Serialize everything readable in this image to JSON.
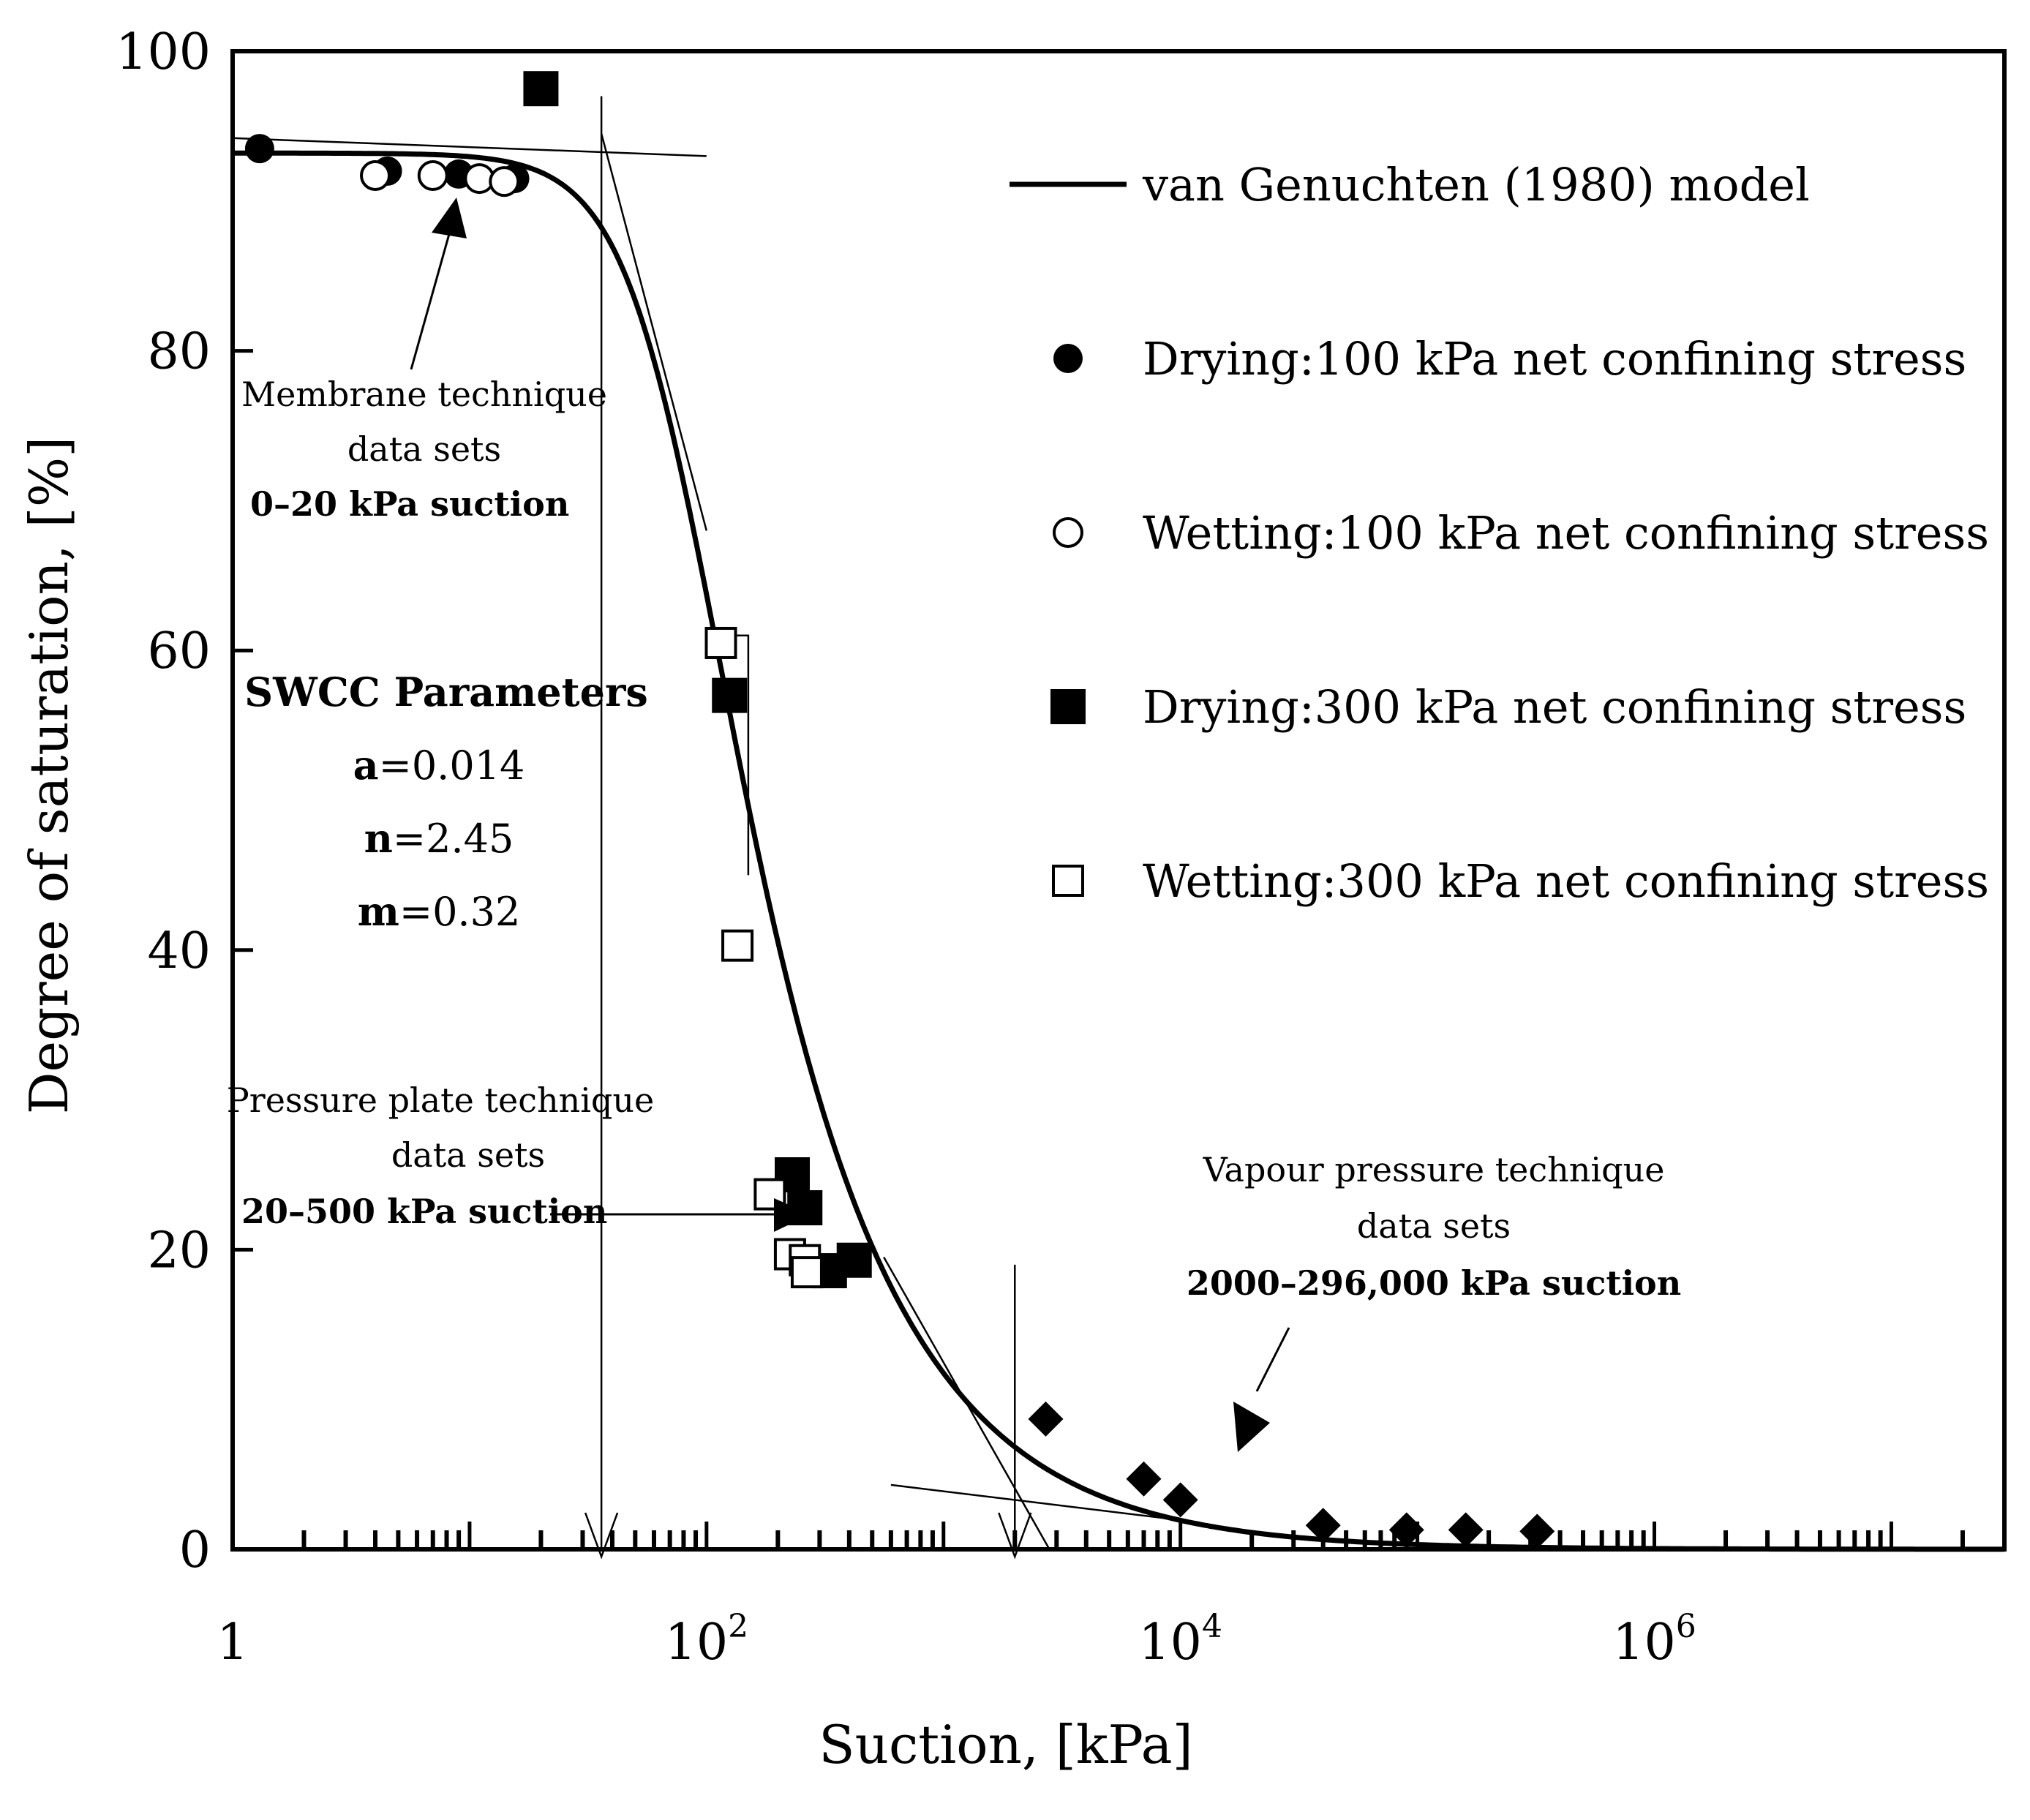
{
  "chart_data": {
    "type": "scatter",
    "xlabel": "Suction, [kPa]",
    "ylabel": "Degree of saturation, [%]",
    "x_scale": "log",
    "xlim": [
      1,
      30000000
    ],
    "ylim": [
      0,
      100
    ],
    "x_ticks": [
      {
        "value": 1,
        "label": "1",
        "exp": ""
      },
      {
        "value": 100,
        "label": "10",
        "exp": "2"
      },
      {
        "value": 10000,
        "label": "10",
        "exp": "4"
      },
      {
        "value": 1000000,
        "label": "10",
        "exp": "6"
      }
    ],
    "y_ticks": [
      {
        "value": 0,
        "label": "0"
      },
      {
        "value": 20,
        "label": "20"
      },
      {
        "value": 40,
        "label": "40"
      },
      {
        "value": 60,
        "label": "60"
      },
      {
        "value": 80,
        "label": "80"
      },
      {
        "value": 100,
        "label": "100"
      }
    ],
    "grid": false,
    "legend_position": "top-right",
    "legend": [
      {
        "label": "van Genuchten (1980) model",
        "marker": "line"
      },
      {
        "label": "Drying:100 kPa net confining stress",
        "marker": "filled-circle"
      },
      {
        "label": "Wetting:100 kPa net confining stress",
        "marker": "open-circle"
      },
      {
        "label": "Drying:300 kPa net confining stress",
        "marker": "filled-square"
      },
      {
        "label": "Wetting:300 kPa net confining stress",
        "marker": "open-square"
      }
    ],
    "series": [
      {
        "name": "Drying:100 kPa net confining stress",
        "marker": "filled-circle",
        "x": [
          1.3,
          4.5,
          9,
          15.5
        ],
        "y": [
          93.5,
          92,
          91.8,
          91.5
        ]
      },
      {
        "name": "Wetting:100 kPa net confining stress",
        "marker": "open-circle",
        "x": [
          4,
          7,
          11,
          14
        ],
        "y": [
          91.7,
          91.7,
          91.5,
          91.3
        ]
      },
      {
        "name": "Drying:300 kPa net confining stress",
        "marker": "filled-square",
        "x": [
          20,
          125,
          230,
          260,
          330,
          420
        ],
        "y": [
          97.5,
          57,
          25,
          22.8,
          18.6,
          19.3
        ]
      },
      {
        "name": "Wetting:300 kPa net confining stress",
        "marker": "open-square",
        "x": [
          115,
          135,
          185,
          225,
          260,
          265
        ],
        "y": [
          60.5,
          40.3,
          23.7,
          19.7,
          19.3,
          18.5
        ]
      },
      {
        "name": "",
        "marker": "filled-diamond",
        "x": [
          2700,
          7000,
          10000,
          40000,
          90000,
          160000,
          320000
        ],
        "y": [
          8.7,
          4.7,
          3.3,
          1.6,
          1.3,
          1.3,
          1.2
        ]
      }
    ],
    "model_curve": {
      "a": 0.014,
      "n": 2.45,
      "m": 0.32,
      "s_max": 93.2,
      "s_min": 0
    },
    "construction_lines": [
      {
        "x": [
          1,
          100
        ],
        "y": [
          94.2,
          93.0
        ]
      },
      {
        "x": [
          36,
          100
        ],
        "y": [
          94.5,
          68.0
        ]
      },
      {
        "x": [
          100,
          150,
          150
        ],
        "y": [
          61.0,
          61.0,
          45.0
        ]
      },
      {
        "x": [
          560,
          2800
        ],
        "y": [
          19.5,
          0
        ]
      },
      {
        "x": [
          600,
          12000
        ],
        "y": [
          4.3,
          1.8
        ]
      }
    ],
    "vertical_markers": [
      {
        "x": 36,
        "y_top": 97,
        "y_bottom": 0
      },
      {
        "x": 2000,
        "y_top": 19,
        "y_bottom": 0
      }
    ],
    "annotations": {
      "membrane": {
        "lines": [
          "Membrane technique",
          "data sets"
        ],
        "bold": "0–20 kPa suction"
      },
      "pressure_plate": {
        "lines": [
          "Pressure plate technique",
          "data sets"
        ],
        "bold": "20–500 kPa suction"
      },
      "vapour": {
        "lines": [
          "Vapour pressure technique",
          "data sets"
        ],
        "bold": "2000–296,000 kPa suction"
      },
      "params": {
        "title": "SWCC Parameters",
        "items": [
          {
            "sym": "a",
            "val": "=0.014"
          },
          {
            "sym": "n",
            "val": "=2.45"
          },
          {
            "sym": "m",
            "val": "=0.32"
          }
        ]
      }
    }
  }
}
